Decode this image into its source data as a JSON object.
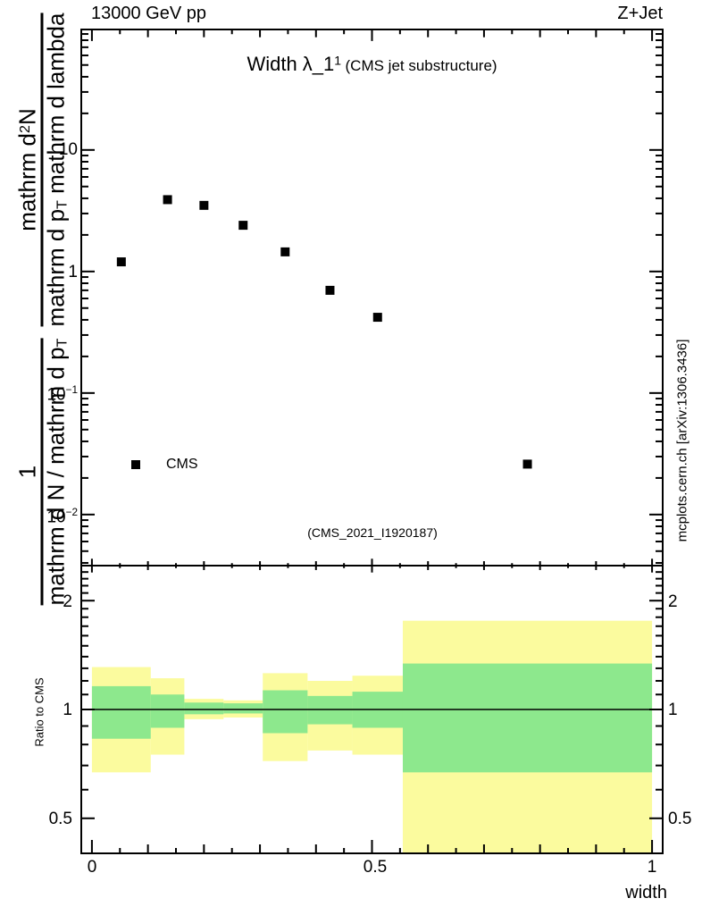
{
  "labels": {
    "beam": "13000 GeV pp",
    "process": "Z+Jet",
    "title_main": "Width λ_1",
    "title_sup": "1",
    "title_paren": "(CMS jet substructure)",
    "legend_cms": "CMS",
    "watermark": "(CMS_2021_I1920187)",
    "arxiv": "mcplots.cern.ch [arXiv:1306.3436]",
    "ratio_ylabel": "Ratio to CMS",
    "xlabel": "width",
    "xtick_0": "0",
    "xtick_05": "0.5",
    "xtick_1": "1",
    "rtick_2": "2",
    "rtick_1": "1",
    "rtick_05": "0.5",
    "ytick_10": "10",
    "ytick_1": "1",
    "ytick_m1_base": "10",
    "ytick_m1_exp": "−1",
    "ytick_m2_base": "10",
    "ytick_m2_exp": "−2",
    "ylabel_top": {
      "num_pre": "mathrm d",
      "num_sup": "2",
      "num_post": "N",
      "den_pre": "mathrm d p",
      "den_sub": "T",
      "den_post": " mathrm d lambda"
    },
    "ylabel_bottom": {
      "num": "1",
      "den_pre": "mathrm d N / mathrm d p",
      "den_sub": "T",
      "den_post": ""
    }
  },
  "colors": {
    "band_yellow": "#fbfb9e",
    "band_green": "#8de88d",
    "frame": "#000000",
    "marker": "#000000",
    "arxiv_gray": "#999999",
    "watermark_gray": "#b0b0b0"
  },
  "chart_data": [
    {
      "type": "scatter",
      "title": "Width λ_1^1 (CMS jet substructure)",
      "xlabel": "width",
      "ylabel": "1/(mathrm d N / mathrm d p_T) · mathrm d²N/(mathrm d p_T mathrm d lambda)",
      "xlim": [
        -0.019,
        1.019
      ],
      "ylog": true,
      "ylim": [
        0.0038,
        98
      ],
      "ytick_values": [
        10,
        1,
        0.1,
        0.01
      ],
      "xtick_minor_step": 0.05,
      "xtick_medium_step": 0.1,
      "xtick_major_step": 0.5,
      "legend_position": "left-middle",
      "series": [
        {
          "name": "CMS",
          "marker": "filled-square",
          "x": [
            0.0525,
            0.135,
            0.2,
            0.27,
            0.345,
            0.425,
            0.51,
            0.7775
          ],
          "y": [
            1.2,
            3.9,
            3.5,
            2.4,
            1.45,
            0.7,
            0.42,
            0.026
          ]
        }
      ]
    },
    {
      "type": "ratio-bands",
      "ylabel": "Ratio to CMS",
      "ylog": true,
      "ylim": [
        0.4,
        2.5
      ],
      "ytick_values": [
        2,
        1,
        0.5
      ],
      "ytick_minor_values": [
        0.4,
        0.6,
        0.7,
        0.8,
        0.9,
        1.1,
        1.2,
        1.3,
        1.4,
        1.5,
        1.6,
        1.7,
        1.8,
        1.9,
        2.1,
        2.2,
        2.3,
        2.4
      ],
      "xtick_values": [
        0,
        0.5,
        1
      ],
      "unity_line": 1,
      "bin_edges": [
        0,
        0.105,
        0.165,
        0.235,
        0.305,
        0.385,
        0.465,
        0.555,
        1.0
      ],
      "yellow_lo": [
        0.67,
        0.75,
        0.94,
        0.95,
        0.72,
        0.77,
        0.75,
        0.38
      ],
      "yellow_hi": [
        1.31,
        1.22,
        1.07,
        1.06,
        1.26,
        1.2,
        1.24,
        1.76
      ],
      "green_lo": [
        0.83,
        0.89,
        0.97,
        0.975,
        0.86,
        0.91,
        0.89,
        0.67
      ],
      "green_hi": [
        1.16,
        1.1,
        1.045,
        1.04,
        1.13,
        1.09,
        1.12,
        1.34
      ]
    }
  ]
}
